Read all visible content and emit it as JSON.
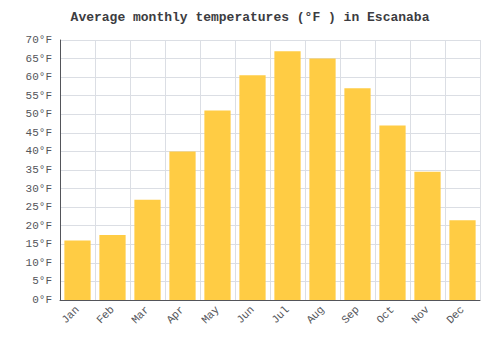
{
  "chart_data": {
    "type": "bar",
    "title": "Average monthly temperatures (°F ) in Escanaba",
    "categories": [
      "Jan",
      "Feb",
      "Mar",
      "Apr",
      "May",
      "Jun",
      "Jul",
      "Aug",
      "Sep",
      "Oct",
      "Nov",
      "Dec"
    ],
    "values": [
      16.0,
      17.5,
      27.0,
      40.0,
      51.0,
      60.5,
      67.0,
      65.0,
      57.0,
      47.0,
      34.5,
      21.5
    ],
    "color": "#FFCC44",
    "ylim": [
      0,
      70
    ],
    "yticks": [
      {
        "value": 0,
        "label": "0°F"
      },
      {
        "value": 5,
        "label": "5°F"
      },
      {
        "value": 10,
        "label": "10°F"
      },
      {
        "value": 15,
        "label": "15°F"
      },
      {
        "value": 20,
        "label": "20°F"
      },
      {
        "value": 25,
        "label": "25°F"
      },
      {
        "value": 30,
        "label": "30°F"
      },
      {
        "value": 35,
        "label": "35°F"
      },
      {
        "value": 40,
        "label": "40°F"
      },
      {
        "value": 45,
        "label": "45°F"
      },
      {
        "value": 50,
        "label": "50°F"
      },
      {
        "value": 55,
        "label": "55°F"
      },
      {
        "value": 60,
        "label": "60°F"
      },
      {
        "value": 65,
        "label": "65°F"
      },
      {
        "value": 70,
        "label": "70°F"
      }
    ],
    "grid": true
  }
}
